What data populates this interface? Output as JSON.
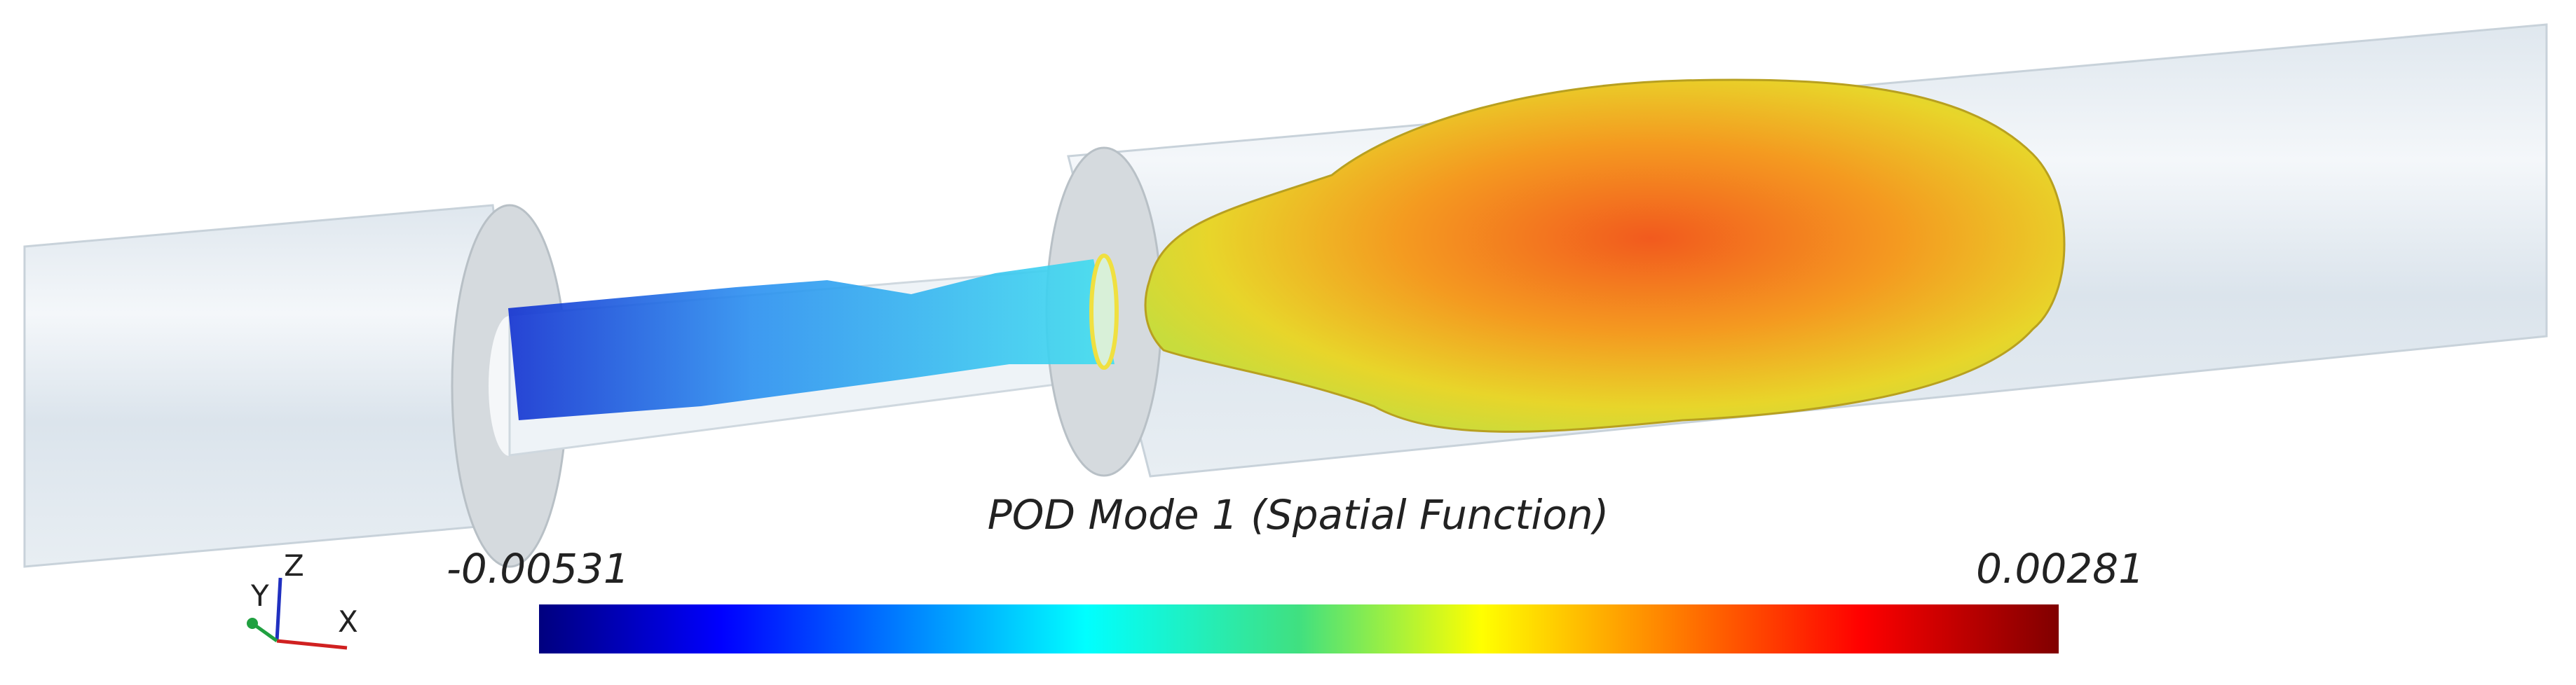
{
  "colorbar": {
    "title": "POD Mode 1 (Spatial Function)",
    "min": -0.00531,
    "max": 0.00281
  },
  "triad": {
    "x": "X",
    "y": "Y",
    "z": "Z"
  }
}
